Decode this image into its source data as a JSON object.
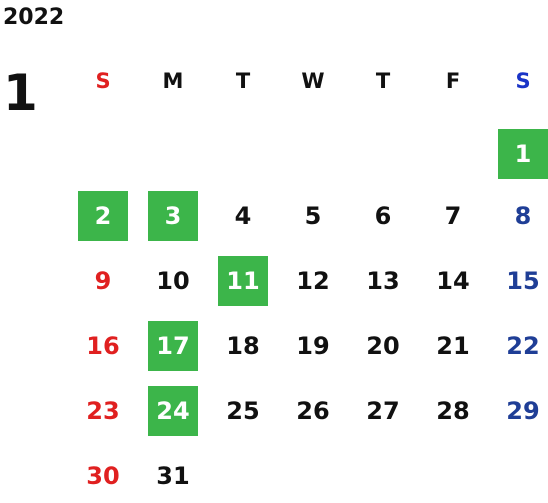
{
  "year": "2022",
  "month": "1",
  "weekdays": [
    "S",
    "M",
    "T",
    "W",
    "T",
    "F",
    "S"
  ],
  "weeks": [
    [
      "",
      "",
      "",
      "",
      "",
      "",
      "1"
    ],
    [
      "2",
      "3",
      "4",
      "5",
      "6",
      "7",
      "8"
    ],
    [
      "9",
      "10",
      "11",
      "12",
      "13",
      "14",
      "15"
    ],
    [
      "16",
      "17",
      "18",
      "19",
      "20",
      "21",
      "22"
    ],
    [
      "23",
      "24",
      "25",
      "26",
      "27",
      "28",
      "29"
    ],
    [
      "30",
      "31",
      "",
      "",
      "",
      "",
      ""
    ]
  ],
  "highlighted_days": [
    "1",
    "2",
    "3",
    "11",
    "17",
    "24"
  ],
  "colors": {
    "sunday": "#e02020",
    "saturday": "#1f3e96",
    "highlight": "#3cb54a"
  }
}
